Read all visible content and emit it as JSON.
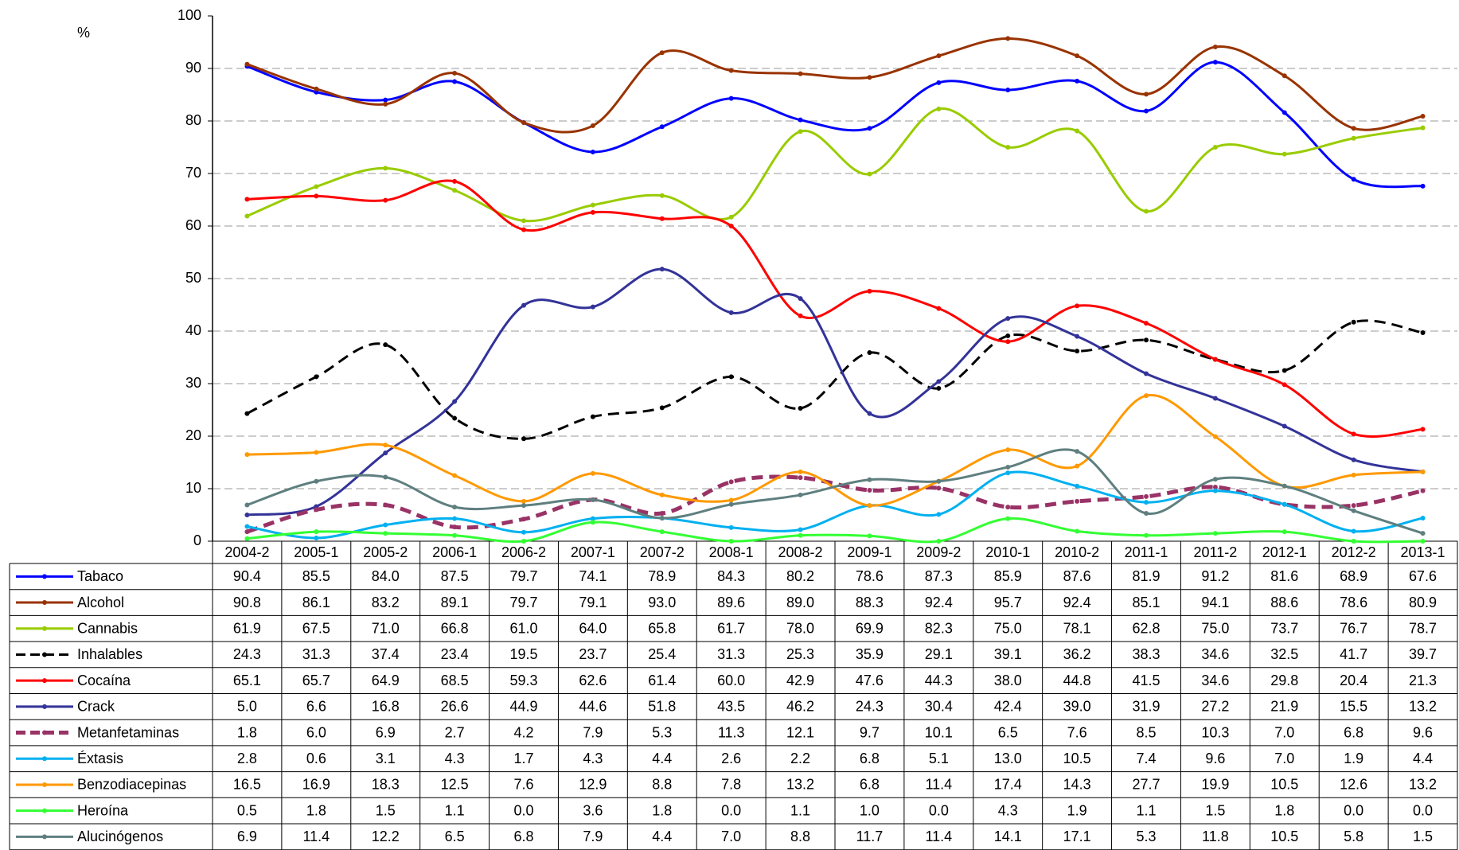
{
  "chart_data": {
    "type": "line",
    "y_label": "%",
    "categories": [
      "2004-2",
      "2005-1",
      "2005-2",
      "2006-1",
      "2006-2",
      "2007-1",
      "2007-2",
      "2008-1",
      "2008-2",
      "2009-1",
      "2009-2",
      "2010-1",
      "2010-2",
      "2011-1",
      "2011-2",
      "2012-1",
      "2012-2",
      "2013-1"
    ],
    "ylim": [
      0,
      100
    ],
    "yticks": [
      0,
      10,
      20,
      30,
      40,
      50,
      60,
      70,
      80,
      90,
      100
    ],
    "grid": true,
    "smooth": true,
    "series": [
      {
        "name": "Tabaco",
        "color": "#0000ff",
        "dashed": false,
        "values": [
          90.4,
          85.5,
          84.0,
          87.5,
          79.7,
          74.1,
          78.9,
          84.3,
          80.2,
          78.6,
          87.3,
          85.9,
          87.6,
          81.9,
          91.2,
          81.6,
          68.9,
          67.6
        ],
        "value_labels": [
          "90.4",
          "85.5",
          "84.0",
          "87.5",
          "79.7",
          "74.1",
          "78.9",
          "84.3",
          "80.2",
          "78.6",
          "87.3",
          "85.9",
          "87.6",
          "81.9",
          "91.2",
          "81.6",
          "68.9",
          "67.6"
        ]
      },
      {
        "name": "Alcohol",
        "color": "#993300",
        "dashed": false,
        "values": [
          90.8,
          86.1,
          83.2,
          89.1,
          79.7,
          79.1,
          93.0,
          89.6,
          89.0,
          88.3,
          92.4,
          95.7,
          92.4,
          85.1,
          94.1,
          88.6,
          78.6,
          80.9
        ],
        "value_labels": [
          "90.8",
          "86.1",
          "83.2",
          "89.1",
          "79.7",
          "79.1",
          "93.0",
          "89.6",
          "89.0",
          "88.3",
          "92.4",
          "95.7",
          "92.4",
          "85.1",
          "94.1",
          "88.6",
          "78.6",
          "80.9"
        ]
      },
      {
        "name": "Cannabis",
        "color": "#99cc00",
        "dashed": false,
        "values": [
          61.9,
          67.5,
          71.0,
          66.8,
          61.0,
          64.0,
          65.8,
          61.7,
          78.0,
          69.9,
          82.3,
          75.0,
          78.1,
          62.8,
          75.0,
          73.7,
          76.7,
          78.7
        ],
        "value_labels": [
          "61.9",
          "67.5",
          "71.0",
          "66.8",
          "61.0",
          "64.0",
          "65.8",
          "61.7",
          "78.0",
          "69.9",
          "82.3",
          "75.0",
          "78.1",
          "62.8",
          "75.0",
          "73.7",
          "76.7",
          "78.7"
        ]
      },
      {
        "name": "Inhalables",
        "color": "#000000",
        "dashed": true,
        "values": [
          24.3,
          31.3,
          37.4,
          23.4,
          19.5,
          23.7,
          25.4,
          31.3,
          25.3,
          35.9,
          29.1,
          39.1,
          36.2,
          38.3,
          34.6,
          32.5,
          41.7,
          39.7
        ],
        "value_labels": [
          "24.3",
          "31.3",
          "37.4",
          "23.4",
          "19.5",
          "23.7",
          "25.4",
          "31.3",
          "25.3",
          "35.9",
          "29.1",
          "39.1",
          "36.2",
          "38.3",
          "34.6",
          "32.5",
          "41.7",
          "39.7"
        ]
      },
      {
        "name": "Cocaína",
        "color": "#ff0000",
        "dashed": false,
        "values": [
          65.1,
          65.7,
          64.9,
          68.5,
          59.3,
          62.6,
          61.4,
          60.0,
          42.9,
          47.6,
          44.3,
          38.0,
          44.8,
          41.5,
          34.6,
          29.8,
          20.4,
          21.3
        ],
        "value_labels": [
          "65.1",
          "65.7",
          "64.9",
          "68.5",
          "59.3",
          "62.6",
          "61.4",
          "60.0",
          "42.9",
          "47.6",
          "44.3",
          "38.0",
          "44.8",
          "41.5",
          "34.6",
          "29.8",
          "20.4",
          "21.3"
        ]
      },
      {
        "name": "Crack",
        "color": "#333399",
        "dashed": false,
        "values": [
          5.0,
          6.6,
          16.8,
          26.6,
          44.9,
          44.6,
          51.8,
          43.5,
          46.2,
          24.3,
          30.4,
          42.4,
          39.0,
          31.9,
          27.2,
          21.9,
          15.5,
          13.2
        ],
        "value_labels": [
          "5.0",
          "6.6",
          "16.8",
          "26.6",
          "44.9",
          "44.6",
          "51.8",
          "43.5",
          "46.2",
          "24.3",
          "30.4",
          "42.4",
          "39.0",
          "31.9",
          "27.2",
          "21.9",
          "15.5",
          "13.2"
        ]
      },
      {
        "name": "Metanfetaminas",
        "color": "#993366",
        "dashed": true,
        "values": [
          1.8,
          6.0,
          6.9,
          2.7,
          4.2,
          7.9,
          5.3,
          11.3,
          12.1,
          9.7,
          10.1,
          6.5,
          7.6,
          8.5,
          10.3,
          7.0,
          6.8,
          9.6
        ],
        "value_labels": [
          "1.8",
          "6.0",
          "6.9",
          "2.7",
          "4.2",
          "7.9",
          "5.3",
          "11.3",
          "12.1",
          "9.7",
          "10.1",
          "6.5",
          "7.6",
          "8.5",
          "10.3",
          "7.0",
          "6.8",
          "9.6"
        ]
      },
      {
        "name": "Éxtasis",
        "color": "#00b0f0",
        "dashed": false,
        "values": [
          2.8,
          0.6,
          3.1,
          4.3,
          1.7,
          4.3,
          4.4,
          2.6,
          2.2,
          6.8,
          5.1,
          13.0,
          10.5,
          7.4,
          9.6,
          7.0,
          1.9,
          4.4
        ],
        "value_labels": [
          "2.8",
          "0.6",
          "3.1",
          "4.3",
          "1.7",
          "4.3",
          "4.4",
          "2.6",
          "2.2",
          "6.8",
          "5.1",
          "13.0",
          "10.5",
          "7.4",
          "9.6",
          "7.0",
          "1.9",
          "4.4"
        ]
      },
      {
        "name": "Benzodiacepinas",
        "color": "#ff9900",
        "dashed": false,
        "values": [
          16.5,
          16.9,
          18.3,
          12.5,
          7.6,
          12.9,
          8.8,
          7.8,
          13.2,
          6.8,
          11.4,
          17.4,
          14.3,
          27.7,
          19.9,
          10.5,
          12.6,
          13.2
        ],
        "value_labels": [
          "16.5",
          "16.9",
          "18.3",
          "12.5",
          "7.6",
          "12.9",
          "8.8",
          "7.8",
          "13.2",
          "6.8",
          "11.4",
          "17.4",
          "14.3",
          "27.7",
          "19.9",
          "10.5",
          "12.6",
          "13.2"
        ]
      },
      {
        "name": "Heroína",
        "color": "#33ff33",
        "dashed": false,
        "values": [
          0.5,
          1.8,
          1.5,
          1.1,
          0.0,
          3.6,
          1.8,
          0.0,
          1.1,
          1.0,
          0.0,
          4.3,
          1.9,
          1.1,
          1.5,
          1.8,
          0.0,
          0.0
        ],
        "value_labels": [
          "0.5",
          "1.8",
          "1.5",
          "1.1",
          "0.0",
          "3.6",
          "1.8",
          "0.0",
          "1.1",
          "1.0",
          "0.0",
          "4.3",
          "1.9",
          "1.1",
          "1.5",
          "1.8",
          "0.0",
          "0.0"
        ]
      },
      {
        "name": "Alucinógenos",
        "color": "#5f7f7f",
        "dashed": false,
        "values": [
          6.9,
          11.4,
          12.2,
          6.5,
          6.8,
          7.9,
          4.4,
          7.0,
          8.8,
          11.7,
          11.4,
          14.1,
          17.1,
          5.3,
          11.8,
          10.5,
          5.8,
          1.5
        ],
        "value_labels": [
          "6.9",
          "11.4",
          "12.2",
          "6.5",
          "6.8",
          "7.9",
          "4.4",
          "7.0",
          "8.8",
          "11.7",
          "11.4",
          "14.1",
          "17.1",
          "5.3",
          "11.8",
          "10.5",
          "5.8",
          "1.5"
        ]
      }
    ]
  }
}
